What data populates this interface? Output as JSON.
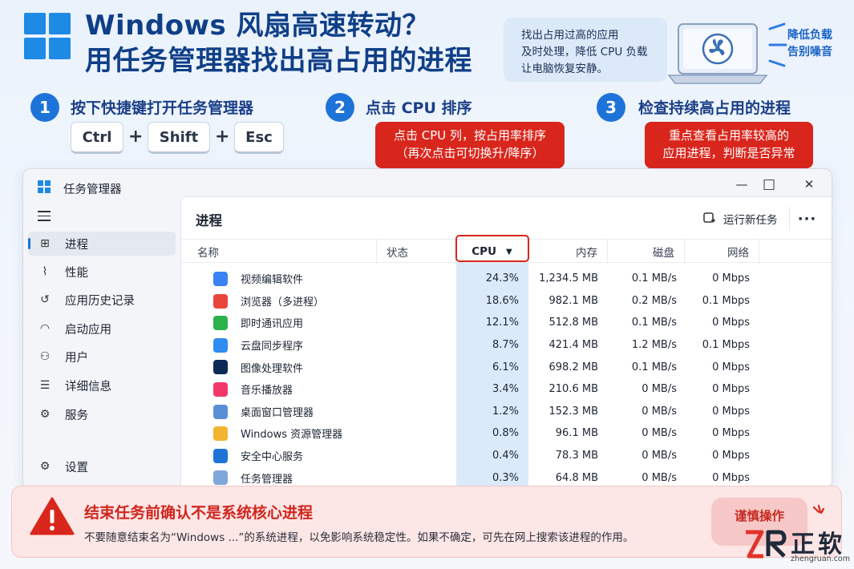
{
  "header": {
    "title_line1": "Windows 风扇高速转动？",
    "title_line2": "用任务管理器找出高占用的进程",
    "tip_lines": [
      "找出占用过高的应用",
      "及时处理，降低 CPU 负载",
      "让电脑恢复安静。"
    ],
    "quiet_lines": [
      "降低负载",
      "告别噪音"
    ]
  },
  "steps": [
    {
      "num": "1",
      "label": "按下快捷键打开任务管理器"
    },
    {
      "num": "2",
      "label": "点击 CPU 排序"
    },
    {
      "num": "3",
      "label": "检查持续高占用的进程"
    }
  ],
  "keys": [
    "Ctrl",
    "Shift",
    "Esc"
  ],
  "plus": "+",
  "callouts": {
    "cpu": [
      "点击 CPU 列，按占用率排序",
      "（再次点击可切换升/降序）"
    ],
    "check": [
      "重点查看占用率较高的",
      "应用进程，判断是否异常"
    ]
  },
  "window": {
    "title": "任务管理器",
    "controls": {
      "minimize": "—",
      "maximize": "□",
      "close": "✕"
    },
    "nav": [
      {
        "label": "进程",
        "icon": "processes-icon",
        "glyph": "⊞",
        "active": true
      },
      {
        "label": "性能",
        "icon": "performance-icon",
        "glyph": "⌇",
        "active": false
      },
      {
        "label": "应用历史记录",
        "icon": "history-icon",
        "glyph": "↺",
        "active": false
      },
      {
        "label": "启动应用",
        "icon": "startup-icon",
        "glyph": "◠",
        "active": false
      },
      {
        "label": "用户",
        "icon": "users-icon",
        "glyph": "⚇",
        "active": false
      },
      {
        "label": "详细信息",
        "icon": "details-icon",
        "glyph": "☰",
        "active": false
      },
      {
        "label": "服务",
        "icon": "services-icon",
        "glyph": "⚙",
        "active": false
      }
    ],
    "settings_label": "设置",
    "page_title": "进程",
    "run_new_task": "运行新任务",
    "more": "···",
    "columns": {
      "name": "名称",
      "status": "状态",
      "cpu": "CPU",
      "memory": "内存",
      "disk": "磁盘",
      "network": "网络"
    },
    "rows": [
      {
        "name": "视频编辑软件",
        "icon": "video-editor-icon",
        "color": "#3b82f6",
        "cpu": "24.3%",
        "mem": "1,234.5 MB",
        "disk": "0.1 MB/s",
        "net": "0 Mbps"
      },
      {
        "name": "浏览器（多进程）",
        "icon": "browser-icon",
        "color": "#e8453c",
        "cpu": "18.6%",
        "mem": "982.1 MB",
        "disk": "0.2 MB/s",
        "net": "0.1 Mbps"
      },
      {
        "name": "即时通讯应用",
        "icon": "chat-icon",
        "color": "#2bb24c",
        "cpu": "12.1%",
        "mem": "512.8 MB",
        "disk": "0.1 MB/s",
        "net": "0 Mbps"
      },
      {
        "name": "云盘同步程序",
        "icon": "cloud-sync-icon",
        "color": "#2f8cf0",
        "cpu": "8.7%",
        "mem": "421.4 MB",
        "disk": "1.2 MB/s",
        "net": "0.1 Mbps"
      },
      {
        "name": "图像处理软件",
        "icon": "photo-editor-icon",
        "color": "#0b2a55",
        "cpu": "6.1%",
        "mem": "698.2 MB",
        "disk": "0.1 MB/s",
        "net": "0 Mbps"
      },
      {
        "name": "音乐播放器",
        "icon": "music-player-icon",
        "color": "#f2386b",
        "cpu": "3.4%",
        "mem": "210.6 MB",
        "disk": "0 MB/s",
        "net": "0 Mbps"
      },
      {
        "name": "桌面窗口管理器",
        "icon": "dwm-icon",
        "color": "#5a8fd6",
        "cpu": "1.2%",
        "mem": "152.3 MB",
        "disk": "0 MB/s",
        "net": "0 Mbps"
      },
      {
        "name": "Windows 资源管理器",
        "icon": "folder-icon",
        "color": "#f2b431",
        "cpu": "0.8%",
        "mem": "96.1 MB",
        "disk": "0 MB/s",
        "net": "0 Mbps"
      },
      {
        "name": "安全中心服务",
        "icon": "shield-icon",
        "color": "#1e73d8",
        "cpu": "0.4%",
        "mem": "78.3 MB",
        "disk": "0 MB/s",
        "net": "0 Mbps"
      },
      {
        "name": "任务管理器",
        "icon": "task-manager-icon",
        "color": "#7fa7d9",
        "cpu": "0.3%",
        "mem": "64.8 MB",
        "disk": "0 MB/s",
        "net": "0 Mbps"
      }
    ]
  },
  "warning": {
    "title": "结束任务前确认不是系统核心进程",
    "text": "不要随意结束名为“Windows ...”的系统进程，以免影响系统稳定性。如果不确定，可先在网上搜索该进程的作用。",
    "button": "谨慎操作"
  },
  "brand": {
    "name": "正软",
    "url": "zhengruan.com"
  }
}
